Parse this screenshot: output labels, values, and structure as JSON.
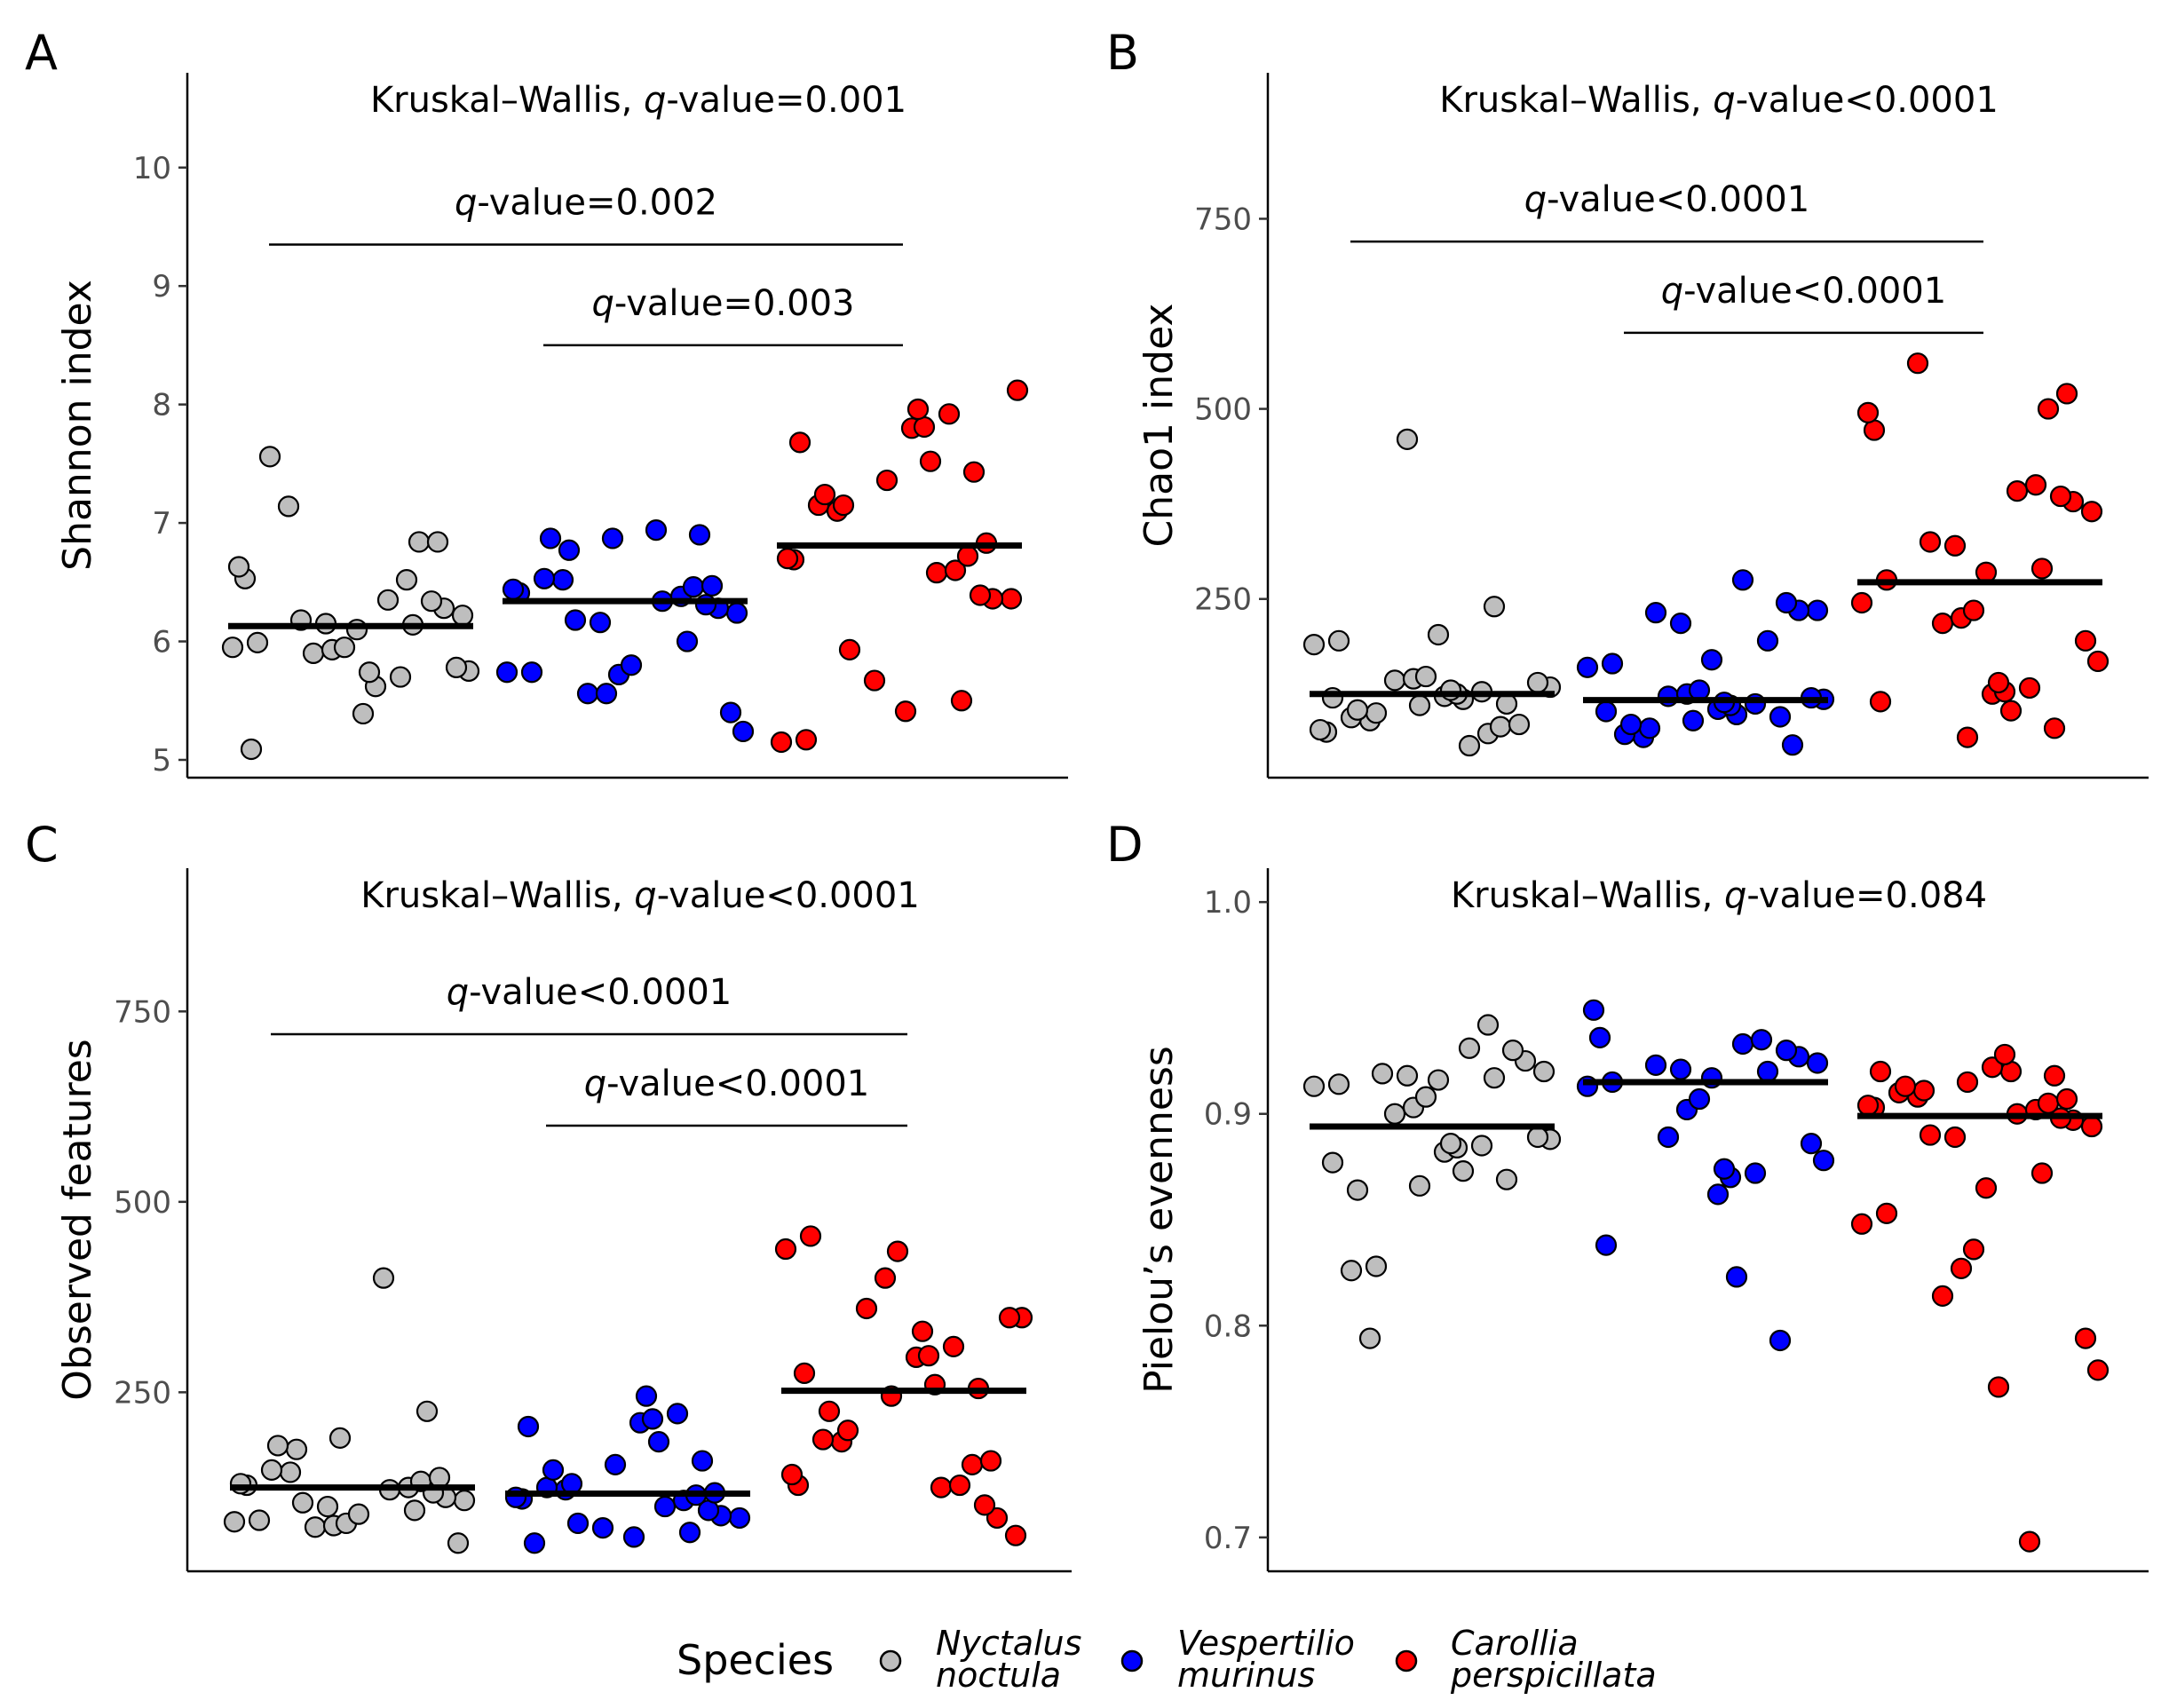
{
  "legend": {
    "title": "Species",
    "items": [
      {
        "line1": "Nyctalus",
        "line2": "noctula",
        "color": "#bebebe"
      },
      {
        "line1": "Vespertilio",
        "line2": "murinus",
        "color": "#0000ff"
      },
      {
        "line1": "Carollia",
        "line2": "perspicillata",
        "color": "#ff0000"
      }
    ]
  },
  "chart_data": [
    {
      "panel": "A",
      "type": "scatter",
      "ylabel": "Shannon index",
      "ylim": [
        4.85,
        10.8
      ],
      "yticks": [
        5,
        6,
        7,
        8,
        9,
        10
      ],
      "kw": {
        "prefix": "Kruskal–Wallis, ",
        "q": "q",
        "rest": "-value=0.001"
      },
      "brackets": [
        {
          "from": 0,
          "to": 2,
          "y": 9.35,
          "q": "q",
          "rest": "-value=0.002"
        },
        {
          "from": 1,
          "to": 2,
          "y": 8.5,
          "q": "q",
          "rest": "-value=0.003"
        }
      ],
      "medians": [
        6.13,
        6.34,
        6.81
      ],
      "groups": [
        [
          5.09,
          5.39,
          5.62,
          5.7,
          5.74,
          5.75,
          5.78,
          5.9,
          5.93,
          5.95,
          5.95,
          5.99,
          6.1,
          6.14,
          6.15,
          6.18,
          6.22,
          6.28,
          6.34,
          6.35,
          6.52,
          6.53,
          6.63,
          6.84,
          6.84,
          7.14,
          7.56
        ],
        [
          5.24,
          5.4,
          5.56,
          5.56,
          5.72,
          5.74,
          5.74,
          5.8,
          6.0,
          6.16,
          6.18,
          6.24,
          6.28,
          6.31,
          6.34,
          6.38,
          6.41,
          6.44,
          6.46,
          6.47,
          6.52,
          6.53,
          6.77,
          6.87,
          6.87,
          6.9,
          6.94
        ],
        [
          5.15,
          5.17,
          5.41,
          5.5,
          5.67,
          5.93,
          6.36,
          6.36,
          6.39,
          6.58,
          6.6,
          6.69,
          6.7,
          6.72,
          6.83,
          7.1,
          7.15,
          7.15,
          7.24,
          7.36,
          7.43,
          7.52,
          7.68,
          7.8,
          7.81,
          7.92,
          7.96,
          8.12
        ]
      ]
    },
    {
      "panel": "B",
      "type": "scatter",
      "ylabel": "Chao1 index",
      "ylim": [
        15,
        942
      ],
      "yticks": [
        250,
        500,
        750
      ],
      "kw": {
        "prefix": "Kruskal–Wallis, ",
        "q": "q",
        "rest": "-value<0.0001"
      },
      "brackets": [
        {
          "from": 0,
          "to": 2,
          "y": 720,
          "q": "q",
          "rest": "-value<0.0001"
        },
        {
          "from": 1,
          "to": 2,
          "y": 600,
          "q": "q",
          "rest": "-value<0.0001"
        }
      ],
      "medians": [
        125,
        117,
        272
      ],
      "groups": [
        [
          57,
          73,
          75,
          78,
          82,
          85,
          90,
          94,
          100,
          104,
          110,
          112,
          118,
          120,
          122,
          125,
          128,
          130,
          134,
          140,
          143,
          145,
          148,
          190,
          195,
          203,
          240,
          460
        ],
        [
          58,
          68,
          72,
          80,
          85,
          90,
          95,
          98,
          102,
          105,
          110,
          112,
          114,
          118,
          120,
          122,
          125,
          130,
          160,
          165,
          170,
          195,
          218,
          232,
          235,
          235,
          245,
          275
        ],
        [
          68,
          80,
          103,
          115,
          125,
          128,
          133,
          140,
          168,
          195,
          218,
          225,
          235,
          245,
          275,
          285,
          290,
          320,
          325,
          365,
          378,
          385,
          392,
          400,
          472,
          495,
          500,
          520,
          560
        ]
      ]
    },
    {
      "panel": "C",
      "type": "scatter",
      "ylabel": "Observed features",
      "ylim": [
        15,
        938
      ],
      "yticks": [
        250,
        500,
        750
      ],
      "kw": {
        "prefix": "Kruskal–Wallis, ",
        "q": "q",
        "rest": "-value<0.0001"
      },
      "brackets": [
        {
          "from": 0,
          "to": 2,
          "y": 720,
          "q": "q",
          "rest": "-value<0.0001"
        },
        {
          "from": 1,
          "to": 2,
          "y": 600,
          "q": "q",
          "rest": "-value<0.0001"
        }
      ],
      "medians": [
        125,
        117,
        252
      ],
      "groups": [
        [
          52,
          73,
          75,
          78,
          80,
          82,
          90,
          95,
          100,
          105,
          108,
          112,
          118,
          122,
          125,
          128,
          130,
          133,
          138,
          145,
          148,
          175,
          180,
          190,
          225,
          400
        ],
        [
          52,
          60,
          66,
          72,
          78,
          85,
          88,
          95,
          100,
          108,
          110,
          112,
          115,
          118,
          122,
          125,
          130,
          148,
          155,
          160,
          185,
          205,
          210,
          215,
          222,
          245
        ],
        [
          62,
          85,
          102,
          125,
          128,
          128,
          142,
          155,
          160,
          185,
          188,
          200,
          225,
          245,
          255,
          260,
          275,
          296,
          298,
          310,
          330,
          348,
          348,
          360,
          400,
          435,
          438,
          455
        ]
      ]
    },
    {
      "panel": "D",
      "type": "scatter",
      "ylabel": "Pielou’s evenness",
      "ylim": [
        0.684,
        1.016
      ],
      "yticks": [
        0.7,
        0.8,
        0.9,
        1.0
      ],
      "kw": {
        "prefix": "Kruskal–Wallis, ",
        "q": "q",
        "rest": "-value=0.084"
      },
      "brackets": [],
      "medians": [
        0.894,
        0.915,
        0.899
      ],
      "groups": [
        [
          0.794,
          0.826,
          0.828,
          0.864,
          0.866,
          0.869,
          0.873,
          0.877,
          0.882,
          0.884,
          0.885,
          0.886,
          0.888,
          0.889,
          0.9,
          0.903,
          0.908,
          0.913,
          0.914,
          0.916,
          0.917,
          0.918,
          0.919,
          0.92,
          0.925,
          0.93,
          0.931,
          0.942
        ],
        [
          0.793,
          0.823,
          0.838,
          0.862,
          0.87,
          0.872,
          0.874,
          0.878,
          0.886,
          0.889,
          0.902,
          0.907,
          0.913,
          0.915,
          0.917,
          0.92,
          0.921,
          0.923,
          0.924,
          0.927,
          0.93,
          0.933,
          0.935,
          0.936,
          0.949
        ],
        [
          0.698,
          0.771,
          0.779,
          0.794,
          0.814,
          0.827,
          0.836,
          0.848,
          0.853,
          0.865,
          0.872,
          0.889,
          0.89,
          0.894,
          0.897,
          0.898,
          0.9,
          0.902,
          0.903,
          0.904,
          0.905,
          0.907,
          0.908,
          0.91,
          0.911,
          0.913,
          0.915,
          0.918,
          0.92,
          0.92,
          0.922,
          0.928
        ]
      ]
    }
  ]
}
